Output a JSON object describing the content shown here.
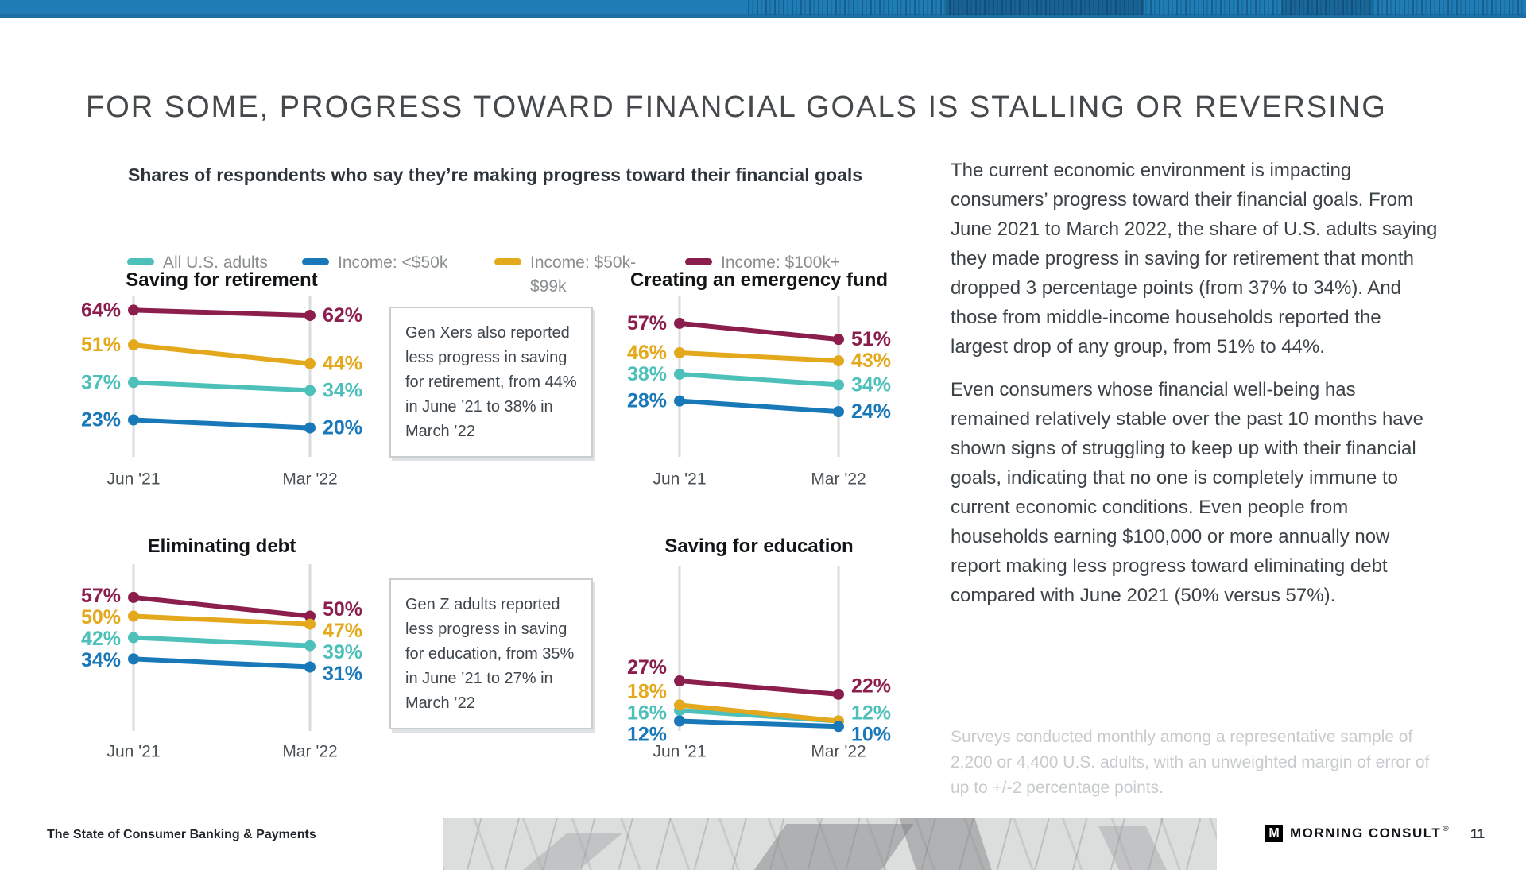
{
  "title": "FOR SOME, PROGRESS TOWARD FINANCIAL GOALS IS STALLING OR REVERSING",
  "subtitle": "Shares of respondents who say they’re making progress toward their financial goals",
  "chart_data": {
    "type": "line",
    "x": [
      "Jun '21",
      "Mar '22"
    ],
    "ylim": [
      0,
      70
    ],
    "value_suffix": "%",
    "grid": false,
    "legend_position": "top",
    "legend": [
      {
        "label": "All U.S. adults",
        "label2": "",
        "color": "#4EC0BA"
      },
      {
        "label": "Income: <$50k",
        "label2": "",
        "color": "#1878B8"
      },
      {
        "label": "Income: $50k-",
        "label2": "$99k",
        "color": "#E3A81B"
      },
      {
        "label": "Income: $100k+",
        "label2": "",
        "color": "#8C1E4E"
      }
    ],
    "charts": [
      {
        "title": "Saving for retirement",
        "series": [
          {
            "name": "Income: $100k+",
            "color": "#8C1E4E",
            "values": [
              64,
              62
            ],
            "labels": [
              "64%",
              "62%"
            ]
          },
          {
            "name": "Income: $50k-$99k",
            "color": "#E3A81B",
            "values": [
              51,
              44
            ],
            "labels": [
              "51%",
              "44%"
            ]
          },
          {
            "name": "All U.S. adults",
            "color": "#4EC0BA",
            "values": [
              37,
              34
            ],
            "labels": [
              "37%",
              "34%"
            ]
          },
          {
            "name": "Income: <$50k",
            "color": "#1878B8",
            "values": [
              23,
              20
            ],
            "labels": [
              "23%",
              "20%"
            ]
          }
        ]
      },
      {
        "title": "Creating an emergency fund",
        "series": [
          {
            "name": "Income: $100k+",
            "color": "#8C1E4E",
            "values": [
              57,
              51
            ],
            "labels": [
              "57%",
              "51%"
            ]
          },
          {
            "name": "Income: $50k-$99k",
            "color": "#E3A81B",
            "values": [
              46,
              43
            ],
            "labels": [
              "46%",
              "43%"
            ]
          },
          {
            "name": "All U.S. adults",
            "color": "#4EC0BA",
            "values": [
              38,
              34
            ],
            "labels": [
              "38%",
              "34%"
            ]
          },
          {
            "name": "Income: <$50k",
            "color": "#1878B8",
            "values": [
              28,
              24
            ],
            "labels": [
              "28%",
              "24%"
            ]
          }
        ]
      },
      {
        "title": "Eliminating debt",
        "series": [
          {
            "name": "Income: $100k+",
            "color": "#8C1E4E",
            "values": [
              57,
              50
            ],
            "labels": [
              "57%",
              "50%"
            ]
          },
          {
            "name": "Income: $50k-$99k",
            "color": "#E3A81B",
            "values": [
              50,
              47
            ],
            "labels": [
              "50%",
              "47%"
            ]
          },
          {
            "name": "All U.S. adults",
            "color": "#4EC0BA",
            "values": [
              42,
              39
            ],
            "labels": [
              "42%",
              "39%"
            ]
          },
          {
            "name": "Income: <$50k",
            "color": "#1878B8",
            "values": [
              34,
              31
            ],
            "labels": [
              "34%",
              "31%"
            ]
          }
        ]
      },
      {
        "title": "Saving for education",
        "series": [
          {
            "name": "Income: $100k+",
            "color": "#8C1E4E",
            "values": [
              27,
              22
            ],
            "labels": [
              "27%",
              "22%"
            ]
          },
          {
            "name": "All U.S. adults",
            "color": "#4EC0BA",
            "values": [
              16,
              12
            ],
            "labels": [
              "16%",
              "12%"
            ]
          },
          {
            "name": "Income: $50k-$99k",
            "color": "#E3A81B",
            "values": [
              18,
              12
            ],
            "labels": [
              "18%",
              ""
            ]
          },
          {
            "name": "Income: <$50k",
            "color": "#1878B8",
            "values": [
              12,
              10
            ],
            "labels": [
              "12%",
              "10%"
            ]
          }
        ]
      }
    ]
  },
  "callouts": [
    "Gen Xers also reported less progress in saving for retirement, from 44% in June ’21 to 38% in March ’22",
    "Gen Z adults reported less progress in saving for education, from 35% in June ’21 to 27% in March ’22"
  ],
  "body_paragraphs": [
    "The current economic environment is impacting consumers’ progress toward their financial goals. From June 2021 to March 2022, the share of U.S. adults saying they made progress in saving for retirement that month dropped 3 percentage points (from 37% to 34%). And those from middle-income households reported the largest drop of any group, from 51% to 44%.",
    "Even consumers whose financial well-being has remained relatively stable over the past 10 months have shown signs of struggling to keep up with their financial goals, indicating that no one is completely immune to current economic conditions. Even people from households earning $100,000 or more annually now report making less progress toward eliminating debt compared with June 2021 (50% versus 57%)."
  ],
  "source_note": "Surveys conducted monthly among a representative sample of 2,200 or 4,400 U.S. adults, with an unweighted margin of error of up to +/-2 percentage points.",
  "footer": {
    "left": "The State of Consumer Banking & Payments",
    "brand": "MORNING CONSULT",
    "reg": "®",
    "page_number": "11"
  },
  "colors": {
    "top_bar": "#1F7CB4",
    "axis_line": "#DADBDC",
    "chart_title": "#121517",
    "x_label": "#4A5054"
  }
}
